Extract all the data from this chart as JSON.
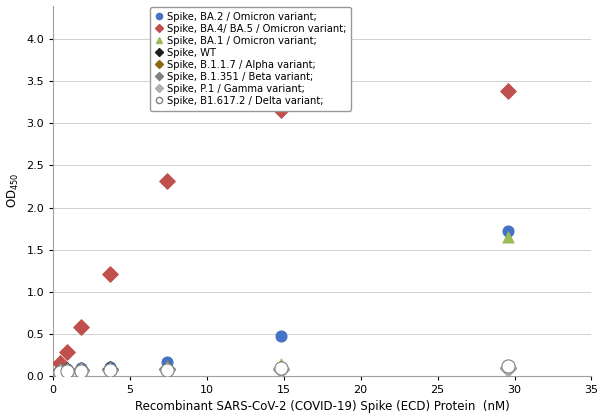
{
  "xlabel": "Recombinant SARS-CoV-2 (COVID-19) Spike (ECD) Protein  (nM)",
  "ylabel": "OD 450",
  "xlim": [
    0,
    35
  ],
  "ylim": [
    0,
    4.4
  ],
  "xticks": [
    0,
    5,
    10,
    15,
    20,
    25,
    30,
    35
  ],
  "yticks": [
    0,
    0.5,
    1.0,
    1.5,
    2.0,
    2.5,
    3.0,
    3.5,
    4.0
  ],
  "series": [
    {
      "label": "Spike, BA.2 / Omicron variant;",
      "x": [
        0.46,
        0.93,
        1.85,
        3.7,
        7.41,
        14.8,
        29.6
      ],
      "y": [
        0.07,
        0.08,
        0.09,
        0.11,
        0.17,
        0.47,
        1.72
      ],
      "color": "#4472C4",
      "marker": "o",
      "marker_size": 5,
      "marker_facecolor": "#4472C4",
      "fit": true,
      "fit_color": "#4472C4",
      "fit_xmax": 30
    },
    {
      "label": "Spike, BA.4/ BA.5 / Omicron variant;",
      "x": [
        0.46,
        0.93,
        1.85,
        3.7,
        7.41,
        14.8,
        29.6
      ],
      "y": [
        0.15,
        0.28,
        0.58,
        1.21,
        2.31,
        3.16,
        3.38
      ],
      "color": "#C0504D",
      "marker": "D",
      "marker_size": 5,
      "marker_facecolor": "#C0504D",
      "fit": true,
      "fit_color": "#C0504D",
      "fit_xmax": 30
    },
    {
      "label": "Spike, BA.1 / Omicron variant;",
      "x": [
        0.46,
        0.93,
        1.85,
        3.7,
        7.41,
        14.8,
        29.6
      ],
      "y": [
        0.07,
        0.07,
        0.08,
        0.09,
        0.12,
        0.14,
        1.65
      ],
      "color": "#9BBB59",
      "marker": "^",
      "marker_size": 5,
      "marker_facecolor": "#9BBB59",
      "fit": true,
      "fit_color": "#9BBB59",
      "fit_xmax": 30
    },
    {
      "label": "Spike, WT",
      "x": [
        0.46,
        0.93,
        1.85,
        3.7,
        7.41,
        14.8,
        29.6
      ],
      "y": [
        0.06,
        0.07,
        0.07,
        0.08,
        0.08,
        0.08,
        0.09
      ],
      "color": "#1F1F1F",
      "marker": "D",
      "marker_size": 5,
      "marker_facecolor": "#1F1F1F",
      "fit": false,
      "fit_color": "#1F1F1F",
      "fit_xmax": 30
    },
    {
      "label": "Spike, B.1.1.7 / Alpha variant;",
      "x": [
        0.46,
        0.93,
        1.85,
        3.7,
        7.41,
        14.8,
        29.6
      ],
      "y": [
        0.06,
        0.06,
        0.07,
        0.07,
        0.08,
        0.08,
        0.09
      ],
      "color": "#8B6914",
      "marker": "D",
      "marker_size": 5,
      "marker_facecolor": "#8B6914",
      "fit": false,
      "fit_color": "#8B6914",
      "fit_xmax": 30
    },
    {
      "label": "Spike, B.1.351 / Beta variant;",
      "x": [
        0.46,
        0.93,
        1.85,
        3.7,
        7.41,
        14.8,
        29.6
      ],
      "y": [
        0.06,
        0.06,
        0.07,
        0.07,
        0.08,
        0.08,
        0.09
      ],
      "color": "#808080",
      "marker": "D",
      "marker_size": 5,
      "marker_facecolor": "#808080",
      "fit": false,
      "fit_color": "#808080",
      "fit_xmax": 30
    },
    {
      "label": "Spike, P.1 / Gamma variant;",
      "x": [
        0.46,
        0.93,
        1.85,
        3.7,
        7.41,
        14.8,
        29.6
      ],
      "y": [
        0.05,
        0.06,
        0.06,
        0.07,
        0.07,
        0.08,
        0.09
      ],
      "color": "#B0B0B0",
      "marker": "D",
      "marker_size": 5,
      "marker_facecolor": "#B0B0B0",
      "fit": false,
      "fit_color": "#B0B0B0",
      "fit_xmax": 30
    },
    {
      "label": "Spike, B1.617.2 / Delta variant;",
      "x": [
        0.46,
        0.93,
        1.85,
        3.7,
        7.41,
        14.8,
        29.6
      ],
      "y": [
        0.05,
        0.06,
        0.06,
        0.07,
        0.07,
        0.09,
        0.12
      ],
      "color": "#808080",
      "marker": "o",
      "marker_size": 6,
      "marker_facecolor": "white",
      "fit": false,
      "fit_color": "#808080",
      "fit_xmax": 30
    }
  ],
  "background_color": "#FFFFFF",
  "grid_color": "#D0D0D0",
  "legend_fontsize": 7.2,
  "axis_fontsize": 8.5,
  "tick_fontsize": 8
}
